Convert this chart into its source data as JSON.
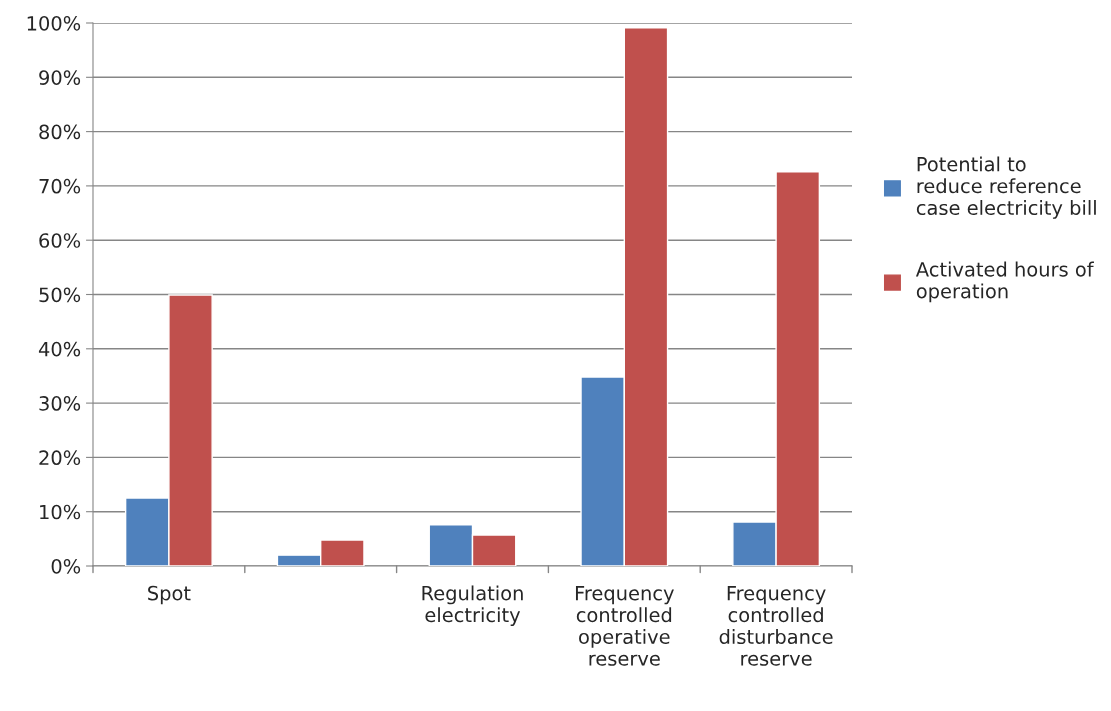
{
  "chart_data": {
    "type": "bar",
    "categories": [
      "Spot",
      null,
      "Regulation\nelectricity",
      "Frequency\ncontrolled\noperative\nreserve",
      "Frequency\ncontrolled\ndisturbance\nreserve"
    ],
    "series": [
      {
        "name": "Potential to\nreduce reference\ncase electricity bill",
        "color": "#4f81bd",
        "values": [
          12.5,
          2.0,
          7.6,
          34.8,
          8.1
        ]
      },
      {
        "name": "Activated hours of\noperation",
        "color": "#c0504d",
        "values": [
          49.9,
          4.8,
          5.7,
          99.1,
          72.6
        ]
      }
    ],
    "ylim": [
      0,
      100
    ],
    "yticks": [
      {
        "value": 0,
        "label": "0%"
      },
      {
        "value": 10,
        "label": "10%"
      },
      {
        "value": 20,
        "label": "20%"
      },
      {
        "value": 30,
        "label": "30%"
      },
      {
        "value": 40,
        "label": "40%"
      },
      {
        "value": 50,
        "label": "50%"
      },
      {
        "value": 60,
        "label": "60%"
      },
      {
        "value": 70,
        "label": "70%"
      },
      {
        "value": 80,
        "label": "80%"
      },
      {
        "value": 90,
        "label": "90%"
      },
      {
        "value": 100,
        "label": "100%"
      }
    ],
    "grid": "y",
    "legend": "right"
  }
}
